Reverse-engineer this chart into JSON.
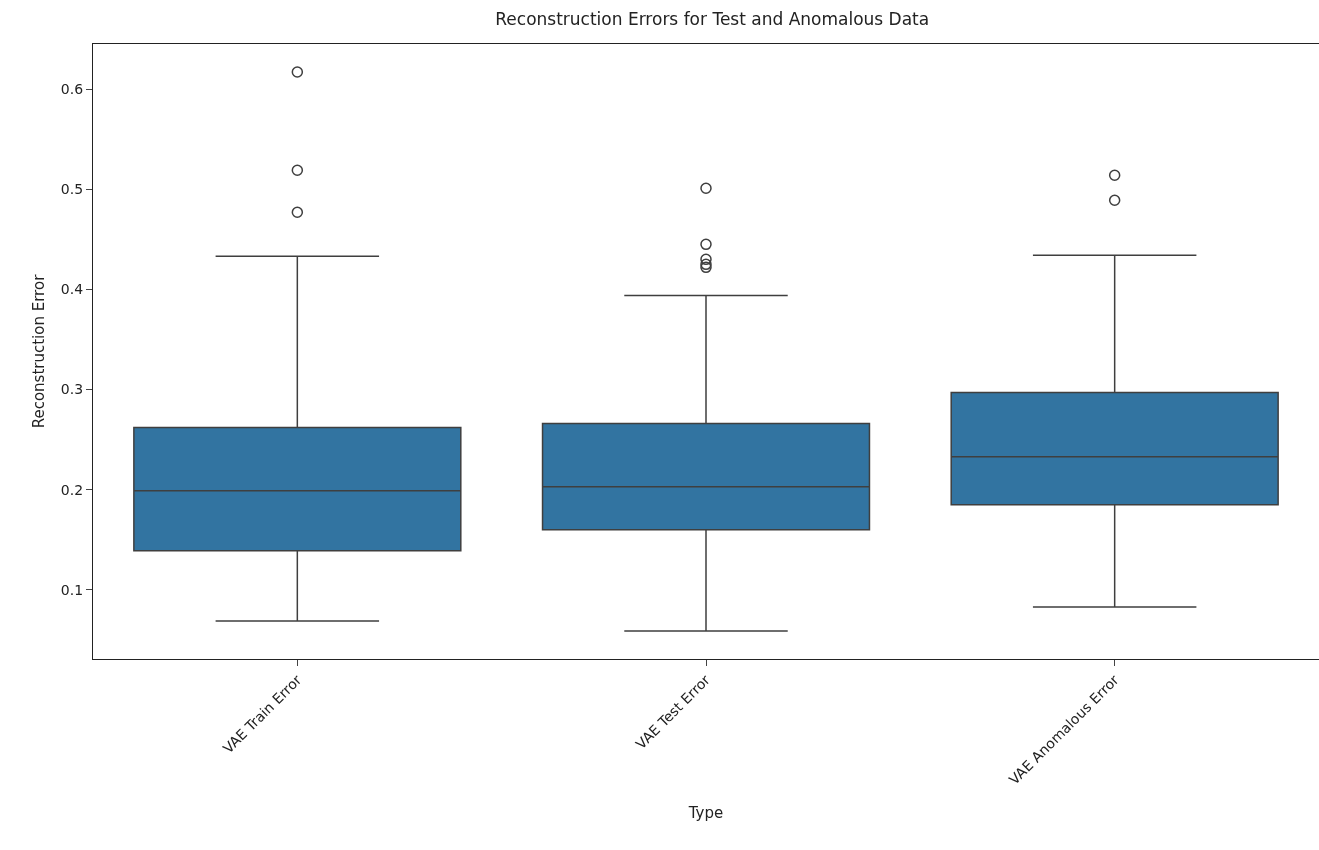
{
  "chart_data": {
    "type": "box",
    "title": "Reconstruction Errors for Test and Anomalous Data",
    "xlabel": "Type",
    "ylabel": "Reconstruction Error",
    "categories": [
      "VAE Train Error",
      "VAE Test Error",
      "VAE Anomalous Error"
    ],
    "color": "#3274a1",
    "boxes": [
      {
        "low": 0.069,
        "q1": 0.139,
        "median": 0.199,
        "q3": 0.262,
        "high": 0.433,
        "outliers": [
          0.477,
          0.519,
          0.617
        ]
      },
      {
        "low": 0.059,
        "q1": 0.16,
        "median": 0.203,
        "q3": 0.266,
        "high": 0.394,
        "outliers": [
          0.422,
          0.425,
          0.43,
          0.445,
          0.501
        ]
      },
      {
        "low": 0.083,
        "q1": 0.185,
        "median": 0.233,
        "q3": 0.297,
        "high": 0.434,
        "outliers": [
          0.489,
          0.514
        ]
      }
    ],
    "ylim": [
      0.031,
      0.645
    ],
    "yticks": [
      0.1,
      0.2,
      0.3,
      0.4,
      0.5,
      0.6
    ],
    "grid": false
  }
}
